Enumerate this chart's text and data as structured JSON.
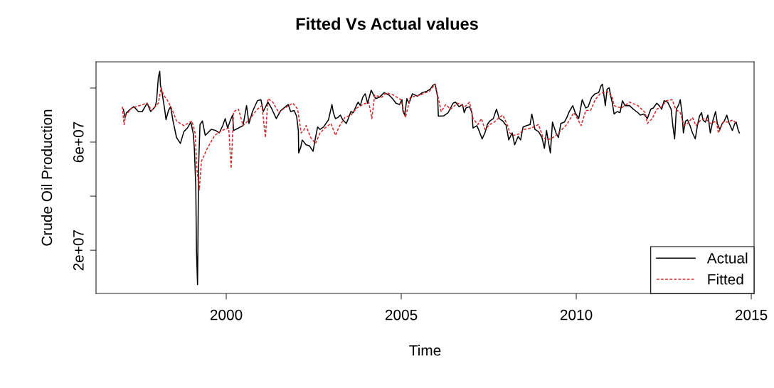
{
  "chart_data": {
    "type": "line",
    "title": "Fitted Vs Actual values",
    "xlabel": "Time",
    "ylabel": "Crude Oil Production",
    "xlim": [
      1996.28,
      2015.08
    ],
    "ylim": [
      4000000,
      89700000
    ],
    "xticks": [
      2000,
      2005,
      2010,
      2015
    ],
    "yticks": [
      {
        "value": 20000000,
        "label": "2e+07"
      },
      {
        "value": 40000000,
        "label": null
      },
      {
        "value": 60000000,
        "label": "6e+07"
      },
      {
        "value": 80000000,
        "label": null
      }
    ],
    "grid": false,
    "legend": "bottom right",
    "marker": "none",
    "series": [
      {
        "name": "Actual",
        "color": "#000000",
        "line_style": "solid",
        "x": [
          1997.06,
          1997.11,
          1997.15,
          1997.3,
          1997.36,
          1997.49,
          1997.6,
          1997.74,
          1997.84,
          1997.97,
          1998.01,
          1998.06,
          1998.1,
          1998.12,
          1998.16,
          1998.24,
          1998.28,
          1998.35,
          1998.41,
          1998.48,
          1998.58,
          1998.69,
          1998.79,
          1998.89,
          1998.99,
          1999.06,
          1999.09,
          1999.13,
          1999.15,
          1999.18,
          1999.21,
          1999.25,
          1999.32,
          1999.4,
          1999.57,
          1999.7,
          1999.8,
          1999.9,
          1999.97,
          2000.04,
          2000.11,
          2000.18,
          2000.21,
          2000.35,
          2000.48,
          2000.58,
          2000.65,
          2000.75,
          2000.89,
          2000.99,
          2001.06,
          2001.19,
          2001.29,
          2001.43,
          2001.56,
          2001.73,
          2001.77,
          2001.84,
          2001.94,
          2002.01,
          2002.06,
          2002.07,
          2002.13,
          2002.17,
          2002.28,
          2002.38,
          2002.48,
          2002.55,
          2002.61,
          2002.68,
          2002.78,
          2002.92,
          2002.99,
          2003.02,
          2003.06,
          2003.12,
          2003.19,
          2003.26,
          2003.33,
          2003.43,
          2003.5,
          2003.56,
          2003.63,
          2003.73,
          2003.77,
          2003.83,
          2003.9,
          2003.97,
          2004.04,
          2004.14,
          2004.21,
          2004.27,
          2004.38,
          2004.51,
          2004.65,
          2004.75,
          2004.85,
          2004.95,
          2005.02,
          2005.05,
          2005.1,
          2005.16,
          2005.22,
          2005.32,
          2005.46,
          2005.6,
          2005.73,
          2005.83,
          2005.9,
          2005.97,
          2006.0,
          2006.04,
          2006.06,
          2006.21,
          2006.34,
          2006.48,
          2006.55,
          2006.65,
          2006.75,
          2006.8,
          2006.85,
          2006.95,
          2007.02,
          2007.05,
          2007.16,
          2007.22,
          2007.31,
          2007.39,
          2007.46,
          2007.53,
          2007.63,
          2007.72,
          2007.8,
          2007.9,
          2008.0,
          2008.07,
          2008.17,
          2008.24,
          2008.34,
          2008.41,
          2008.48,
          2008.58,
          2008.68,
          2008.73,
          2008.82,
          2008.92,
          2009.02,
          2009.09,
          2009.15,
          2009.22,
          2009.26,
          2009.32,
          2009.42,
          2009.49,
          2009.56,
          2009.66,
          2009.73,
          2009.8,
          2009.9,
          2009.97,
          2010.07,
          2010.17,
          2010.27,
          2010.34,
          2010.44,
          2010.54,
          2010.64,
          2010.71,
          2010.75,
          2010.78,
          2010.83,
          2010.88,
          2010.94,
          2010.98,
          2011.03,
          2011.08,
          2011.17,
          2011.25,
          2011.32,
          2011.39,
          2011.52,
          2011.63,
          2011.76,
          2011.83,
          2011.93,
          2012.03,
          2012.13,
          2012.2,
          2012.3,
          2012.37,
          2012.44,
          2012.51,
          2012.61,
          2012.71,
          2012.76,
          2012.81,
          2012.86,
          2012.93,
          2012.97,
          2013.02,
          2013.06,
          2013.12,
          2013.18,
          2013.25,
          2013.32,
          2013.4,
          2013.46,
          2013.52,
          2013.58,
          2013.62,
          2013.69,
          2013.76,
          2013.83,
          2013.9,
          2013.98,
          2014.03,
          2014.1,
          2014.17,
          2014.23,
          2014.3,
          2014.37,
          2014.46,
          2014.53,
          2014.57,
          2014.62,
          2014.66
        ],
        "values": [
          72200000.0,
          69100000.0,
          70900000.0,
          72600000.0,
          73100000.0,
          71300000.0,
          71300000.0,
          74400000.0,
          71300000.0,
          73100000.0,
          75300000.0,
          84000000.0,
          86200000.0,
          81000000.0,
          78800000.0,
          72200000.0,
          68300000.0,
          71700000.0,
          73100000.0,
          67800000.0,
          61700000.0,
          59500000.0,
          63900000.0,
          65200000.0,
          67400000.0,
          63000000.0,
          57300000.0,
          43300000.0,
          19600000.0,
          7300000.0,
          51100000.0,
          66500000.0,
          67800000.0,
          62500000.0,
          64700000.0,
          64300000.0,
          63400000.0,
          66100000.0,
          68700000.0,
          65200000.0,
          67800000.0,
          70000000.0,
          64300000.0,
          65200000.0,
          66100000.0,
          73500000.0,
          66900000.0,
          71300000.0,
          75300000.0,
          75700000.0,
          71300000.0,
          74800000.0,
          72600000.0,
          68700000.0,
          71700000.0,
          73500000.0,
          73900000.0,
          71300000.0,
          71700000.0,
          69600000.0,
          64300000.0,
          56000000.0,
          58200000.0,
          60800000.0,
          59000000.0,
          58600000.0,
          56600000.0,
          61700000.0,
          65600000.0,
          64700000.0,
          65600000.0,
          68200000.0,
          72200000.0,
          73900000.0,
          70900000.0,
          68700000.0,
          69100000.0,
          70000000.0,
          68200000.0,
          66900000.0,
          69100000.0,
          71300000.0,
          70900000.0,
          73900000.0,
          74800000.0,
          73500000.0,
          76600000.0,
          77900000.0,
          74400000.0,
          79200000.0,
          77400000.0,
          76100000.0,
          76600000.0,
          78300000.0,
          77400000.0,
          76100000.0,
          74400000.0,
          73900000.0,
          75700000.0,
          71300000.0,
          70000000.0,
          76100000.0,
          74400000.0,
          77900000.0,
          77000000.0,
          78300000.0,
          78800000.0,
          79600000.0,
          81000000.0,
          81400000.0,
          79200000.0,
          76600000.0,
          69600000.0,
          69700000.0,
          70900000.0,
          74400000.0,
          74800000.0,
          73100000.0,
          73900000.0,
          70900000.0,
          72600000.0,
          73100000.0,
          70900000.0,
          65200000.0,
          66100000.0,
          64300000.0,
          61200000.0,
          63400000.0,
          66500000.0,
          67800000.0,
          68700000.0,
          72200000.0,
          68700000.0,
          67800000.0,
          66100000.0,
          60800000.0,
          63400000.0,
          59000000.0,
          62100000.0,
          60800000.0,
          65600000.0,
          66100000.0,
          66500000.0,
          70400000.0,
          64700000.0,
          63900000.0,
          61700000.0,
          57700000.0,
          64300000.0,
          59000000.0,
          56000000.0,
          67400000.0,
          63400000.0,
          61700000.0,
          66900000.0,
          67400000.0,
          69100000.0,
          71300000.0,
          73500000.0,
          70900000.0,
          68700000.0,
          75700000.0,
          72600000.0,
          73100000.0,
          76600000.0,
          77900000.0,
          78300000.0,
          80900000.0,
          81400000.0,
          78300000.0,
          73500000.0,
          79600000.0,
          80100000.0,
          77400000.0,
          74400000.0,
          70400000.0,
          71300000.0,
          70900000.0,
          75300000.0,
          73500000.0,
          73500000.0,
          72200000.0,
          70900000.0,
          70000000.0,
          70400000.0,
          68700000.0,
          72200000.0,
          72600000.0,
          74400000.0,
          73500000.0,
          72200000.0,
          75300000.0,
          74800000.0,
          72200000.0,
          66000000.0,
          61200000.0,
          72200000.0,
          73900000.0,
          75700000.0,
          70900000.0,
          63400000.0,
          67800000.0,
          68200000.0,
          66100000.0,
          63400000.0,
          61200000.0,
          66100000.0,
          69600000.0,
          70900000.0,
          68200000.0,
          67400000.0,
          70000000.0,
          63400000.0,
          67800000.0,
          71300000.0,
          66900000.0,
          64700000.0,
          66900000.0,
          67800000.0,
          70000000.0,
          66900000.0,
          64300000.0,
          66900000.0,
          67400000.0,
          64700000.0,
          63400000.0
        ]
      },
      {
        "name": "Fitted",
        "color": "#d62728",
        "line_style": "dashed",
        "x": [
          1997.03,
          1997.08,
          1997.13,
          1997.3,
          1997.74,
          1997.87,
          1998.06,
          1998.14,
          1998.21,
          1998.31,
          1998.45,
          1998.58,
          1998.79,
          1999.02,
          1999.11,
          1999.16,
          1999.23,
          1999.29,
          1999.46,
          1999.67,
          1999.87,
          2000.07,
          2000.14,
          2000.21,
          2000.35,
          2000.48,
          2000.68,
          2000.89,
          2001.02,
          2001.12,
          2001.19,
          2001.33,
          2001.5,
          2001.67,
          2001.9,
          2002.04,
          2002.14,
          2002.21,
          2002.28,
          2002.41,
          2002.55,
          2002.68,
          2002.82,
          2002.99,
          2003.12,
          2003.22,
          2003.39,
          2003.56,
          2003.73,
          2003.9,
          2004.07,
          2004.16,
          2004.24,
          2004.44,
          2004.58,
          2004.78,
          2004.99,
          2005.12,
          2005.26,
          2005.53,
          2005.8,
          2005.97,
          2006.04,
          2006.14,
          2006.27,
          2006.41,
          2006.61,
          2006.82,
          2006.95,
          2007.05,
          2007.19,
          2007.29,
          2007.39,
          2007.53,
          2007.66,
          2007.8,
          2007.9,
          2008.04,
          2008.1,
          2008.21,
          2008.37,
          2008.51,
          2008.71,
          2008.92,
          2009.05,
          2009.19,
          2009.39,
          2009.56,
          2009.73,
          2009.93,
          2010.03,
          2010.14,
          2010.27,
          2010.41,
          2010.54,
          2010.68,
          2010.88,
          2011.02,
          2011.08,
          2011.29,
          2011.52,
          2011.76,
          2011.97,
          2012.03,
          2012.17,
          2012.3,
          2012.44,
          2012.57,
          2012.74,
          2012.84,
          2012.97,
          2013.08,
          2013.18,
          2013.32,
          2013.42,
          2013.56,
          2013.69,
          2013.83,
          2014.0,
          2014.06,
          2014.2,
          2014.33,
          2014.47,
          2014.57
        ],
        "values": [
          73100000.0,
          66500000.0,
          70000000.0,
          72600000.0,
          74400000.0,
          71700000.0,
          74400000.0,
          80100000.0,
          77400000.0,
          75700000.0,
          72200000.0,
          67800000.0,
          66100000.0,
          67800000.0,
          63400000.0,
          50300000.0,
          42400000.0,
          52900000.0,
          57700000.0,
          62500000.0,
          64300000.0,
          65200000.0,
          50300000.0,
          71300000.0,
          72200000.0,
          66100000.0,
          68700000.0,
          72200000.0,
          73500000.0,
          61700000.0,
          76100000.0,
          74800000.0,
          70900000.0,
          72600000.0,
          74400000.0,
          72200000.0,
          63400000.0,
          64300000.0,
          66100000.0,
          61700000.0,
          59500000.0,
          63400000.0,
          65200000.0,
          66900000.0,
          62500000.0,
          65600000.0,
          69100000.0,
          70000000.0,
          72600000.0,
          73900000.0,
          74800000.0,
          68700000.0,
          77400000.0,
          76600000.0,
          78300000.0,
          77400000.0,
          75700000.0,
          69100000.0,
          76600000.0,
          77400000.0,
          78800000.0,
          81400000.0,
          77400000.0,
          71300000.0,
          73900000.0,
          72200000.0,
          74400000.0,
          73100000.0,
          74800000.0,
          68700000.0,
          66500000.0,
          68700000.0,
          64700000.0,
          66500000.0,
          67400000.0,
          69100000.0,
          70000000.0,
          66100000.0,
          63400000.0,
          62500000.0,
          63000000.0,
          64700000.0,
          65200000.0,
          66500000.0,
          61700000.0,
          60800000.0,
          62100000.0,
          64300000.0,
          66500000.0,
          70900000.0,
          68700000.0,
          66100000.0,
          71700000.0,
          71700000.0,
          75700000.0,
          77900000.0,
          78800000.0,
          77000000.0,
          73500000.0,
          72600000.0,
          74800000.0,
          73500000.0,
          70900000.0,
          66900000.0,
          68700000.0,
          72200000.0,
          73100000.0,
          75300000.0,
          75700000.0,
          72200000.0,
          70900000.0,
          66100000.0,
          66900000.0,
          69100000.0,
          66100000.0,
          68200000.0,
          68700000.0,
          66900000.0,
          67800000.0,
          63400000.0,
          67400000.0,
          67400000.0,
          68200000.0,
          66900000.0
        ]
      }
    ]
  }
}
